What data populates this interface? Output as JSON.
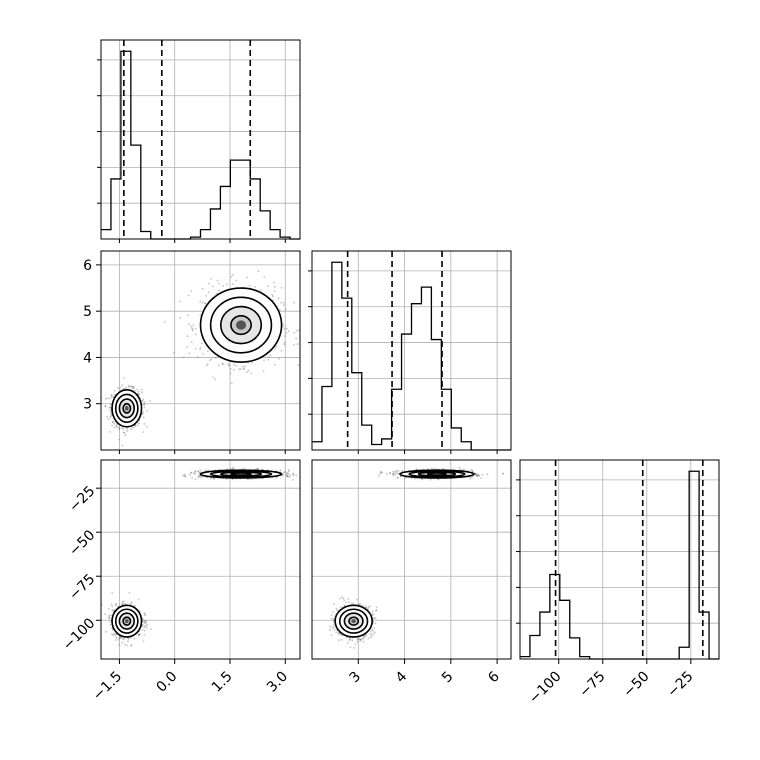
{
  "chart_data": {
    "type": "corner",
    "parameters": [
      {
        "range": [
          -2.0,
          3.4
        ],
        "ticks": [
          -1.5,
          0.0,
          1.5,
          3.0
        ],
        "tick_labels": [
          "−1.5",
          "0.0",
          "1.5",
          "3.0"
        ]
      },
      {
        "range": [
          2.0,
          6.3
        ],
        "ticks": [
          3,
          4,
          5,
          6
        ],
        "tick_labels": [
          "3",
          "4",
          "5",
          "6"
        ]
      },
      {
        "range": [
          -122,
          -9
        ],
        "ticks": [
          -100,
          -75,
          -50,
          -25
        ],
        "tick_labels": [
          "−100",
          "−75",
          "−50",
          "−25"
        ]
      }
    ],
    "histograms": [
      {
        "param": 0,
        "bins": [
          -2.0,
          -1.73,
          -1.46,
          -1.19,
          -0.92,
          -0.65,
          -0.38,
          -0.11,
          0.16,
          0.43,
          0.7,
          0.97,
          1.24,
          1.51,
          1.78,
          2.05,
          2.32,
          2.59,
          2.86,
          3.13,
          3.4
        ],
        "counts": [
          0.05,
          0.32,
          1.0,
          0.5,
          0.04,
          0.0,
          0.0,
          0.0,
          0.0,
          0.01,
          0.05,
          0.16,
          0.28,
          0.42,
          0.42,
          0.32,
          0.15,
          0.05,
          0.01,
          0.0
        ],
        "quantiles": [
          -1.38,
          -0.35,
          2.05
        ]
      },
      {
        "param": 1,
        "bins": [
          2.0,
          2.215,
          2.43,
          2.645,
          2.86,
          3.075,
          3.29,
          3.505,
          3.72,
          3.935,
          4.15,
          4.365,
          4.58,
          4.795,
          5.01,
          5.225,
          5.44,
          5.655,
          5.87,
          6.085,
          6.3
        ],
        "counts": [
          0.03,
          0.23,
          0.68,
          0.55,
          0.28,
          0.09,
          0.02,
          0.04,
          0.22,
          0.42,
          0.53,
          0.59,
          0.4,
          0.22,
          0.08,
          0.03,
          0.0,
          0.0,
          0.0,
          0.0
        ],
        "quantiles": [
          2.77,
          3.73,
          4.81
        ]
      },
      {
        "param": 2,
        "bins": [
          -122.0,
          -116.35,
          -110.7,
          -105.05,
          -99.4,
          -93.75,
          -88.1,
          -82.45,
          -76.8,
          -71.15,
          -65.5,
          -59.85,
          -54.2,
          -48.55,
          -42.9,
          -37.25,
          -31.6,
          -25.95,
          -20.3,
          -14.65,
          -9.0
        ],
        "counts": [
          0.01,
          0.1,
          0.2,
          0.36,
          0.25,
          0.09,
          0.01,
          0.0,
          0.0,
          0.0,
          0.0,
          0.0,
          0.0,
          0.0,
          0.0,
          0.0,
          0.05,
          0.8,
          0.2,
          0.0
        ],
        "quantiles": [
          -101.8,
          -52.3,
          -18.2
        ]
      }
    ],
    "clusters": [
      {
        "center": [
          -1.3,
          2.9,
          -100.5
        ],
        "sd": [
          0.2,
          0.2,
          4.5
        ]
      },
      {
        "center": [
          1.8,
          4.7,
          -17.0
        ],
        "sd": [
          0.55,
          0.4,
          1.1
        ]
      }
    ],
    "joint_pairs": [
      [
        0,
        1
      ],
      [
        0,
        2
      ],
      [
        1,
        2
      ]
    ]
  }
}
